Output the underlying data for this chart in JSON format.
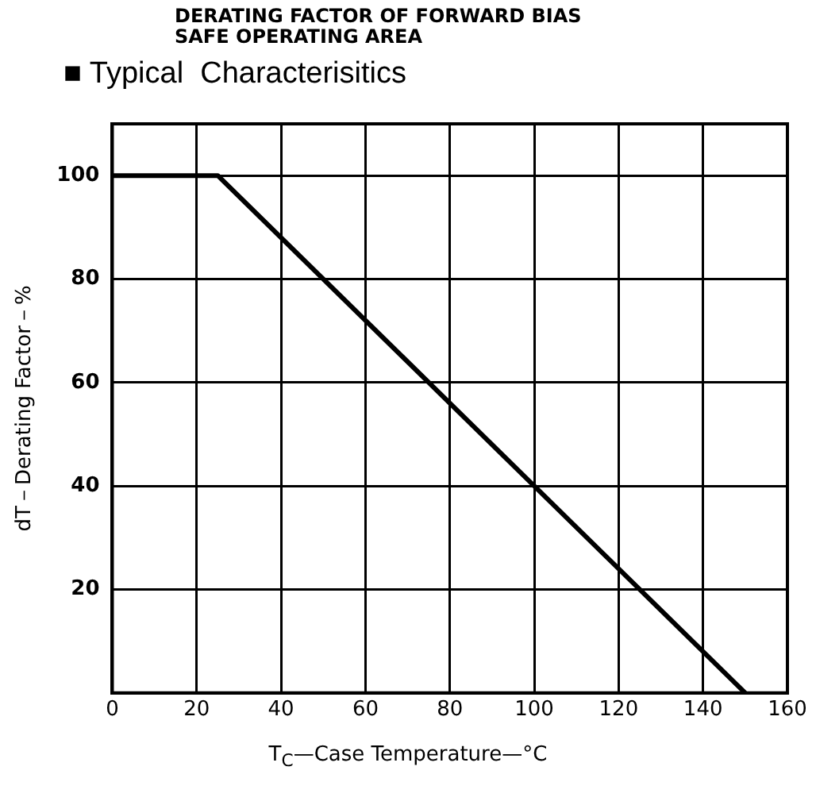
{
  "chart_data": {
    "type": "line",
    "title": "DERATING FACTOR OF FORWARD BIAS\nSAFE OPERATING AREA",
    "subtitle": "■ Typical  Characterisitics",
    "xlabel": "T$_{C}$—Case Temperature—°C",
    "ylabel": "dT－Derating Factor－%",
    "series": [
      {
        "x": [
          0,
          25,
          150
        ],
        "values": [
          100,
          100,
          0
        ],
        "color": "#000000"
      }
    ],
    "xlim": [
      0,
      160
    ],
    "xticks": [
      0,
      20,
      40,
      60,
      80,
      100,
      120,
      140,
      160
    ],
    "ylim": [
      0,
      110
    ],
    "yticks": [
      20,
      40,
      60,
      80,
      100
    ],
    "grid": true,
    "legend": false,
    "marker": "none",
    "line_style": "solid"
  }
}
